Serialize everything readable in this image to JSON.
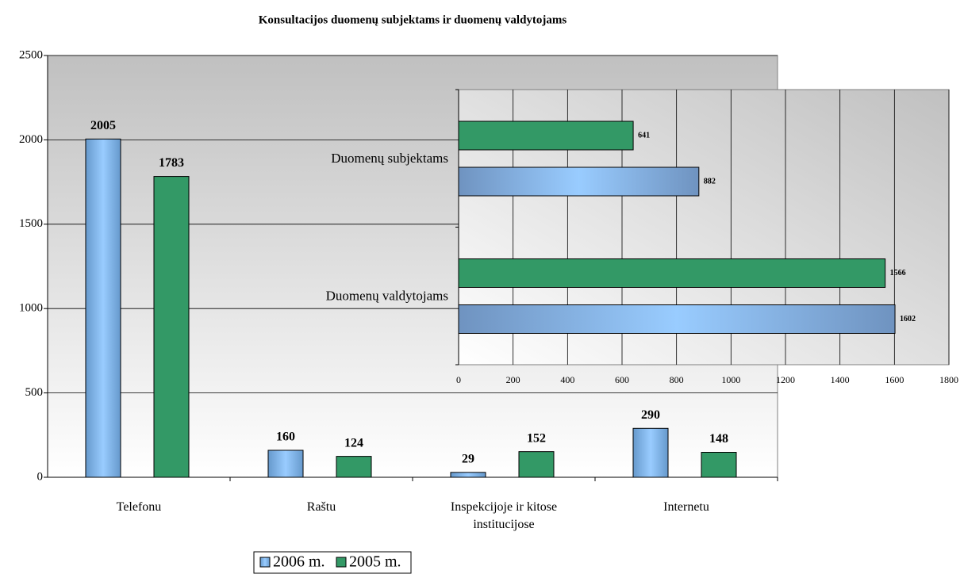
{
  "chart_data": [
    {
      "type": "bar",
      "title": "Konsultacijos duomenų subjektams ir duomenų valdytojams",
      "categories": [
        "Telefonu",
        "Raštu",
        "Inspekcijoje ir kitose institucijose",
        "Internetu"
      ],
      "series": [
        {
          "name": "2006 m.",
          "color": "#99ccff",
          "values": [
            2005,
            160,
            29,
            290
          ]
        },
        {
          "name": "2005 m.",
          "color": "#339966",
          "values": [
            1783,
            124,
            152,
            148
          ]
        }
      ],
      "ylim": [
        0,
        2500
      ],
      "yticks": [
        0,
        500,
        1000,
        1500,
        2000,
        2500
      ],
      "grid": true,
      "legend": "bottom"
    },
    {
      "type": "bar",
      "orientation": "horizontal",
      "categories": [
        "Duomenų subjektams",
        "Duomenų valdytojams"
      ],
      "series": [
        {
          "color": "#339966",
          "values": [
            641,
            1566
          ]
        },
        {
          "color": "#99ccff",
          "values": [
            882,
            1602
          ]
        }
      ],
      "xlim": [
        0,
        1800
      ],
      "xticks": [
        0,
        200,
        400,
        600,
        800,
        1000,
        1200,
        1400,
        1600,
        1800
      ],
      "grid": true
    }
  ]
}
